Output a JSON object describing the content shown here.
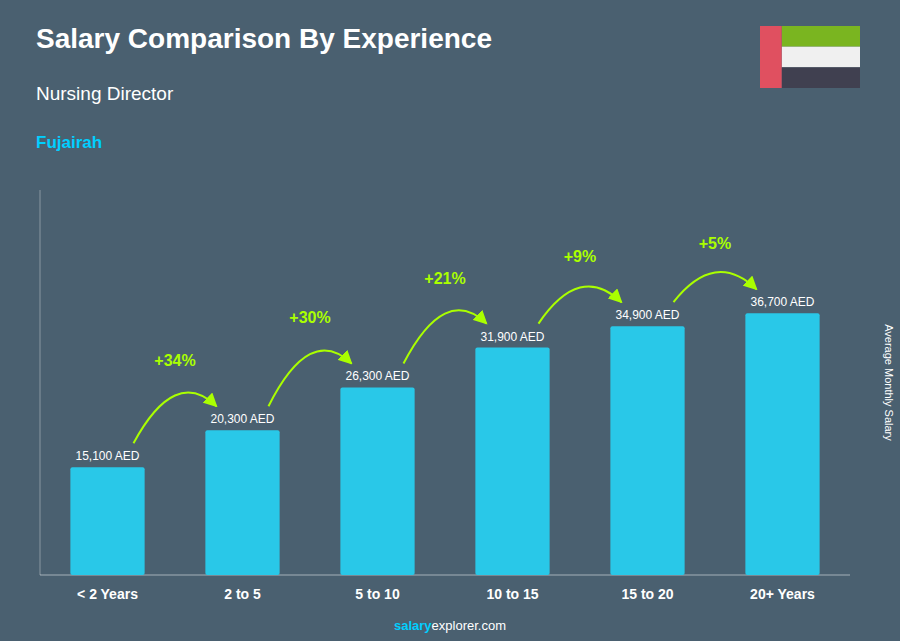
{
  "chart_data": {
    "type": "bar",
    "title": "Salary Comparison By Experience",
    "subtitle": "Nursing Director",
    "city": "Fujairah",
    "ylabel": "Average Monthly Salary",
    "categories": [
      "< 2 Years",
      "2 to 5",
      "5 to 10",
      "10 to 15",
      "15 to 20",
      "20+ Years"
    ],
    "values": [
      15100,
      20300,
      26300,
      31900,
      34900,
      36700
    ],
    "value_labels": [
      "15,100 AED",
      "20,300 AED",
      "26,300 AED",
      "31,900 AED",
      "34,900 AED",
      "36,700 AED"
    ],
    "data_labels": true,
    "annotations": [
      "+34%",
      "+30%",
      "+21%",
      "+9%",
      "+5%"
    ],
    "watermark": [
      "salary",
      "explorer.com"
    ],
    "color": "#29C8E8",
    "ylim": [
      0,
      54000
    ],
    "yticks": [],
    "tick_labels": "x",
    "grid": false
  }
}
